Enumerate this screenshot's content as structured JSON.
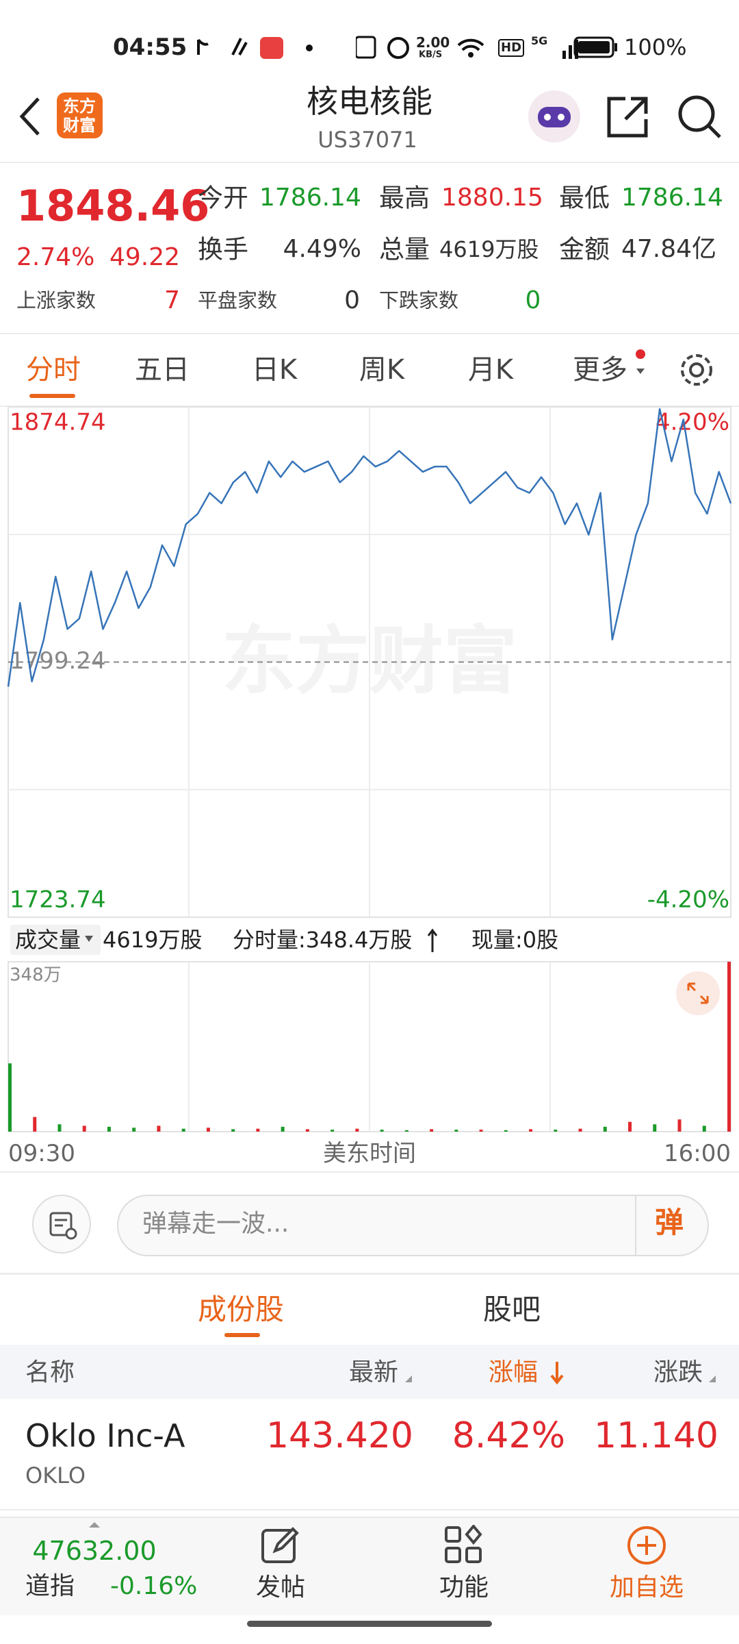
{
  "status_bar": {
    "time": "04:55",
    "net_speed": "2.00",
    "net_unit": "KB/S",
    "hd": "HD",
    "network": "5G",
    "battery": "100%"
  },
  "header": {
    "logo": [
      "东方",
      "财富"
    ],
    "title": "核电核能",
    "code": "US37071"
  },
  "quote": {
    "price": "1848.46",
    "change_pct": "2.74%",
    "change": "49.22",
    "fields": [
      {
        "label": "今开",
        "value": "1786.14"
      },
      {
        "label": "最高",
        "value": "1880.15"
      },
      {
        "label": "最低",
        "value": "1786.14"
      },
      {
        "label": "换手",
        "value": "4.49%"
      },
      {
        "label": "总量",
        "value": "4619万股"
      },
      {
        "label": "金额",
        "value": "47.84亿"
      }
    ],
    "breadth": [
      {
        "label": "上涨家数",
        "value": "7"
      },
      {
        "label": "平盘家数",
        "value": "0"
      },
      {
        "label": "下跌家数",
        "value": "0"
      }
    ]
  },
  "tabs": [
    "分时",
    "五日",
    "日K",
    "周K",
    "月K",
    "更多"
  ],
  "watermark": "东方财富",
  "chart_data": [
    {
      "type": "line",
      "color": "#3674b8",
      "grid": true,
      "categories": [
        "09:30",
        null,
        null,
        null,
        null,
        null,
        null,
        null,
        null,
        null,
        null,
        null,
        null,
        null,
        null,
        null,
        null,
        null,
        null,
        null,
        null,
        null,
        null,
        null,
        null,
        null,
        null,
        null,
        null,
        null,
        null,
        null,
        null,
        null,
        null,
        null,
        null,
        null,
        null,
        null,
        null,
        null,
        null,
        null,
        null,
        null,
        null,
        null,
        null,
        null,
        null,
        null,
        null,
        null,
        null,
        null,
        null,
        null,
        null,
        null,
        null,
        "16:00"
      ],
      "values": [
        1791.95,
        1816.76,
        1793.5,
        1805.9,
        1824.51,
        1809.0,
        1812.1,
        1826.06,
        1809.0,
        1816.76,
        1826.06,
        1815.21,
        1821.41,
        1833.81,
        1827.61,
        1840.01,
        1843.11,
        1849.31,
        1846.21,
        1852.41,
        1855.52,
        1849.31,
        1858.62,
        1853.96,
        1858.62,
        1855.52,
        1857.07,
        1858.62,
        1852.41,
        1855.52,
        1860.17,
        1857.07,
        1858.62,
        1861.72,
        1858.62,
        1855.52,
        1857.07,
        1857.07,
        1852.41,
        1846.21,
        1849.31,
        1852.41,
        1855.52,
        1850.86,
        1849.31,
        1853.96,
        1849.31,
        1840.01,
        1846.21,
        1836.91,
        1849.31,
        1805.9,
        1821.41,
        1836.91,
        1846.21,
        1874.12,
        1858.62,
        1871.02,
        1849.31,
        1843.11,
        1855.52,
        1846.21
      ],
      "ylim": [
        1723.74,
        1874.74
      ],
      "yticks": [
        1874.74,
        1799.24,
        1723.74
      ],
      "y2lim": [
        -4.2,
        4.2
      ],
      "y2ticks": [
        {
          "value": 4.2,
          "label": "4.20%"
        },
        {
          "value": -4.2,
          "label": "-4.20%"
        }
      ],
      "x_label": "美东时间"
    },
    {
      "type": "bar",
      "title": "成交量",
      "total": "4619万股",
      "minute_volume": "分时量:348.4万股",
      "current_volume": "现量:0股",
      "values": [
        140,
        30,
        15,
        12,
        10,
        8,
        12,
        6,
        8,
        5,
        6,
        10,
        5,
        4,
        6,
        4,
        3,
        5,
        4,
        4,
        3,
        5,
        4,
        6,
        10,
        20,
        15,
        25,
        12,
        348.4
      ],
      "bar_colors": [
        "#1a9a2a",
        "#e0282e",
        "#1a9a2a",
        "#e0282e",
        "#1a9a2a",
        "#1a9a2a",
        "#e0282e",
        "#1a9a2a",
        "#e0282e",
        "#1a9a2a",
        "#e0282e",
        "#1a9a2a",
        "#e0282e",
        "#1a9a2a",
        "#e0282e",
        "#1a9a2a",
        "#1a9a2a",
        "#e0282e",
        "#1a9a2a",
        "#e0282e",
        "#1a9a2a",
        "#e0282e",
        "#1a9a2a",
        "#e0282e",
        "#1a9a2a",
        "#e0282e",
        "#1a9a2a",
        "#e0282e",
        "#1a9a2a",
        "#e0282e"
      ],
      "ylim": [
        0,
        348.4
      ],
      "yticks": [
        {
          "value": 348.4,
          "label": "348万"
        }
      ]
    }
  ],
  "danmu": {
    "placeholder": "弹幕走一波...",
    "button": "弹"
  },
  "section_tabs": [
    "成份股",
    "股吧"
  ],
  "table": {
    "columns": [
      "名称",
      "最新",
      "涨幅",
      "涨跌"
    ],
    "rows": [
      {
        "name": "Oklo Inc-A",
        "code": "OKLO",
        "cells": [
          "143.420",
          "8.42%",
          "11.140"
        ]
      }
    ]
  },
  "bottom_bar": {
    "index_value": "47632.00",
    "index_name": "道指",
    "index_change": "-0.16%",
    "actions": [
      "发帖",
      "功能",
      "加自选"
    ]
  }
}
